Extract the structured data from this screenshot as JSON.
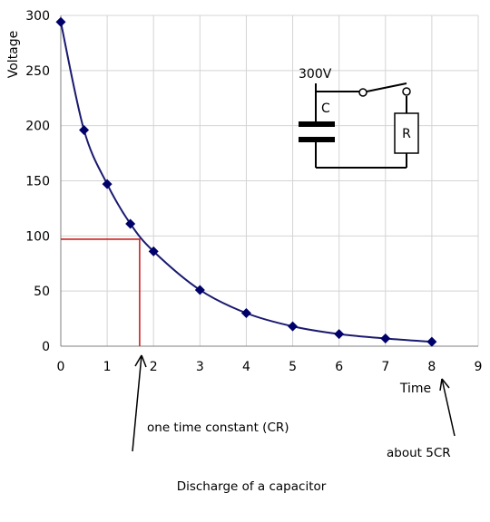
{
  "chart_data": {
    "type": "line",
    "title": "Discharge of a capacitor",
    "xlabel": "Time",
    "ylabel": "Voltage",
    "xlim": [
      0,
      9
    ],
    "ylim": [
      0,
      300
    ],
    "xticks": [
      "0",
      "1",
      "2",
      "3",
      "4",
      "5",
      "6",
      "7",
      "8",
      "9"
    ],
    "yticks": [
      "0",
      "50",
      "100",
      "150",
      "200",
      "250",
      "300"
    ],
    "grid": true,
    "series": [
      {
        "x": [
          0,
          0.5,
          1,
          1.5,
          2,
          3,
          4,
          5,
          6,
          7,
          8
        ],
        "y": [
          294,
          196,
          147,
          111,
          86,
          51,
          30,
          18,
          11,
          7,
          4
        ]
      }
    ],
    "color": "#1a1a70",
    "marker_color": "#00006b",
    "guide_color": "#cc2222",
    "time_constant_guide": {
      "x": 1.7,
      "y": 97
    },
    "annotations": {
      "one_time_constant": "one time constant (CR)",
      "about_5cr": "about 5CR"
    },
    "circuit": {
      "voltage": "300V",
      "capacitor": "C",
      "resistor": "R"
    }
  }
}
